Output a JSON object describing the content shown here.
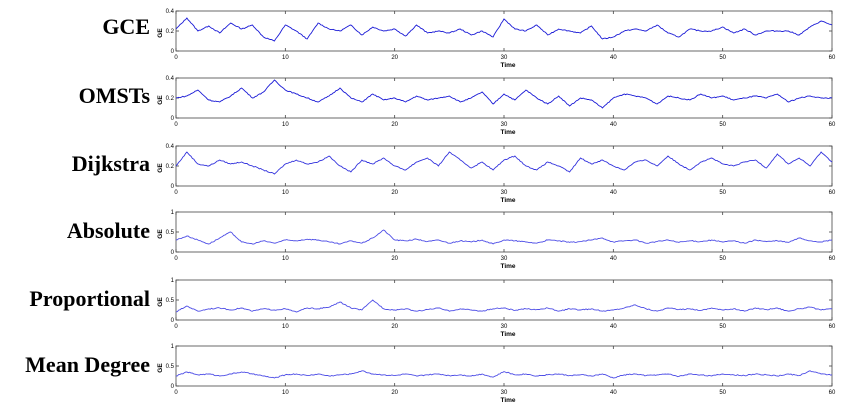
{
  "chart_data": [
    {
      "type": "line",
      "title": "GCE",
      "ylabel": "GE",
      "xlabel": "Time",
      "xlim": [
        0,
        60
      ],
      "ylim": [
        0,
        0.4
      ],
      "xticks": [
        "0",
        "10",
        "20",
        "30",
        "40",
        "50",
        "60"
      ],
      "yticks": [
        "0",
        "0.2",
        "0.4"
      ],
      "series_color": "#1a1ad6",
      "x": [
        0,
        1,
        2,
        3,
        4,
        5,
        6,
        7,
        8,
        9,
        10,
        11,
        12,
        13,
        14,
        15,
        16,
        17,
        18,
        19,
        20,
        21,
        22,
        23,
        24,
        25,
        26,
        27,
        28,
        29,
        30,
        31,
        32,
        33,
        34,
        35,
        36,
        37,
        38,
        39,
        40,
        41,
        42,
        43,
        44,
        45,
        46,
        47,
        48,
        49,
        50,
        51,
        52,
        53,
        54,
        55,
        56,
        57,
        58,
        59,
        60
      ],
      "values": [
        0.22,
        0.33,
        0.2,
        0.25,
        0.18,
        0.28,
        0.22,
        0.26,
        0.14,
        0.1,
        0.26,
        0.2,
        0.12,
        0.28,
        0.22,
        0.2,
        0.26,
        0.16,
        0.24,
        0.2,
        0.22,
        0.15,
        0.26,
        0.18,
        0.2,
        0.18,
        0.22,
        0.16,
        0.2,
        0.14,
        0.32,
        0.22,
        0.2,
        0.26,
        0.16,
        0.22,
        0.2,
        0.18,
        0.25,
        0.12,
        0.14,
        0.2,
        0.22,
        0.2,
        0.26,
        0.18,
        0.14,
        0.22,
        0.2,
        0.2,
        0.24,
        0.18,
        0.22,
        0.16,
        0.2,
        0.2,
        0.2,
        0.16,
        0.24,
        0.3,
        0.26
      ]
    },
    {
      "type": "line",
      "title": "OMSTs",
      "ylabel": "GE",
      "xlabel": "Time",
      "xlim": [
        0,
        60
      ],
      "ylim": [
        0,
        0.4
      ],
      "xticks": [
        "0",
        "10",
        "20",
        "30",
        "40",
        "50",
        "60"
      ],
      "yticks": [
        "0",
        "0.2",
        "0.4"
      ],
      "series_color": "#1a1ad6",
      "x": [
        0,
        1,
        2,
        3,
        4,
        5,
        6,
        7,
        8,
        9,
        10,
        11,
        12,
        13,
        14,
        15,
        16,
        17,
        18,
        19,
        20,
        21,
        22,
        23,
        24,
        25,
        26,
        27,
        28,
        29,
        30,
        31,
        32,
        33,
        34,
        35,
        36,
        37,
        38,
        39,
        40,
        41,
        42,
        43,
        44,
        45,
        46,
        47,
        48,
        49,
        50,
        51,
        52,
        53,
        54,
        55,
        56,
        57,
        58,
        59,
        60
      ],
      "values": [
        0.2,
        0.22,
        0.28,
        0.18,
        0.16,
        0.22,
        0.3,
        0.2,
        0.26,
        0.38,
        0.28,
        0.24,
        0.2,
        0.16,
        0.22,
        0.3,
        0.2,
        0.16,
        0.24,
        0.18,
        0.2,
        0.16,
        0.22,
        0.18,
        0.2,
        0.22,
        0.16,
        0.2,
        0.26,
        0.14,
        0.24,
        0.18,
        0.28,
        0.2,
        0.14,
        0.22,
        0.12,
        0.2,
        0.18,
        0.1,
        0.2,
        0.24,
        0.22,
        0.2,
        0.14,
        0.22,
        0.2,
        0.18,
        0.24,
        0.2,
        0.22,
        0.18,
        0.2,
        0.22,
        0.2,
        0.24,
        0.16,
        0.2,
        0.22,
        0.2,
        0.2
      ]
    },
    {
      "type": "line",
      "title": "Dijkstra",
      "ylabel": "GE",
      "xlabel": "Time",
      "xlim": [
        0,
        60
      ],
      "ylim": [
        0,
        0.4
      ],
      "xticks": [
        "0",
        "10",
        "20",
        "30",
        "40",
        "50",
        "60"
      ],
      "yticks": [
        "0",
        "0.2",
        "0.4"
      ],
      "series_color": "#3333dd",
      "x": [
        0,
        1,
        2,
        3,
        4,
        5,
        6,
        7,
        8,
        9,
        10,
        11,
        12,
        13,
        14,
        15,
        16,
        17,
        18,
        19,
        20,
        21,
        22,
        23,
        24,
        25,
        26,
        27,
        28,
        29,
        30,
        31,
        32,
        33,
        34,
        35,
        36,
        37,
        38,
        39,
        40,
        41,
        42,
        43,
        44,
        45,
        46,
        47,
        48,
        49,
        50,
        51,
        52,
        53,
        54,
        55,
        56,
        57,
        58,
        59,
        60
      ],
      "values": [
        0.2,
        0.34,
        0.22,
        0.2,
        0.26,
        0.22,
        0.24,
        0.2,
        0.16,
        0.12,
        0.22,
        0.26,
        0.22,
        0.24,
        0.3,
        0.2,
        0.14,
        0.26,
        0.22,
        0.28,
        0.2,
        0.16,
        0.24,
        0.28,
        0.2,
        0.34,
        0.26,
        0.18,
        0.24,
        0.16,
        0.26,
        0.3,
        0.2,
        0.16,
        0.24,
        0.2,
        0.14,
        0.28,
        0.22,
        0.26,
        0.2,
        0.16,
        0.24,
        0.26,
        0.2,
        0.3,
        0.22,
        0.16,
        0.24,
        0.28,
        0.22,
        0.2,
        0.24,
        0.26,
        0.18,
        0.32,
        0.22,
        0.28,
        0.2,
        0.34,
        0.24
      ]
    },
    {
      "type": "line",
      "title": "Absolute",
      "ylabel": "GE",
      "xlabel": "Time",
      "xlim": [
        0,
        60
      ],
      "ylim": [
        0,
        1
      ],
      "xticks": [
        "0",
        "10",
        "20",
        "30",
        "40",
        "50",
        "60"
      ],
      "yticks": [
        "0",
        "0.5",
        "1"
      ],
      "series_color": "#4d4de6",
      "x": [
        0,
        1,
        2,
        3,
        4,
        5,
        6,
        7,
        8,
        9,
        10,
        11,
        12,
        13,
        14,
        15,
        16,
        17,
        18,
        19,
        20,
        21,
        22,
        23,
        24,
        25,
        26,
        27,
        28,
        29,
        30,
        31,
        32,
        33,
        34,
        35,
        36,
        37,
        38,
        39,
        40,
        41,
        42,
        43,
        44,
        45,
        46,
        47,
        48,
        49,
        50,
        51,
        52,
        53,
        54,
        55,
        56,
        57,
        58,
        59,
        60
      ],
      "values": [
        0.3,
        0.4,
        0.3,
        0.2,
        0.35,
        0.5,
        0.25,
        0.2,
        0.28,
        0.22,
        0.3,
        0.28,
        0.32,
        0.3,
        0.25,
        0.2,
        0.28,
        0.22,
        0.35,
        0.55,
        0.3,
        0.28,
        0.32,
        0.26,
        0.3,
        0.22,
        0.28,
        0.25,
        0.3,
        0.2,
        0.3,
        0.28,
        0.25,
        0.22,
        0.3,
        0.28,
        0.24,
        0.26,
        0.3,
        0.35,
        0.25,
        0.28,
        0.3,
        0.22,
        0.26,
        0.3,
        0.24,
        0.28,
        0.26,
        0.3,
        0.25,
        0.28,
        0.22,
        0.3,
        0.26,
        0.28,
        0.24,
        0.35,
        0.28,
        0.25,
        0.3
      ]
    },
    {
      "type": "line",
      "title": "Proportional",
      "ylabel": "GE",
      "xlabel": "Time",
      "xlim": [
        0,
        60
      ],
      "ylim": [
        0,
        1
      ],
      "xticks": [
        "0",
        "10",
        "20",
        "30",
        "40",
        "50",
        "60"
      ],
      "yticks": [
        "0",
        "0.5",
        "1"
      ],
      "series_color": "#4d4de6",
      "x": [
        0,
        1,
        2,
        3,
        4,
        5,
        6,
        7,
        8,
        9,
        10,
        11,
        12,
        13,
        14,
        15,
        16,
        17,
        18,
        19,
        20,
        21,
        22,
        23,
        24,
        25,
        26,
        27,
        28,
        29,
        30,
        31,
        32,
        33,
        34,
        35,
        36,
        37,
        38,
        39,
        40,
        41,
        42,
        43,
        44,
        45,
        46,
        47,
        48,
        49,
        50,
        51,
        52,
        53,
        54,
        55,
        56,
        57,
        58,
        59,
        60
      ],
      "values": [
        0.2,
        0.35,
        0.22,
        0.28,
        0.3,
        0.25,
        0.3,
        0.22,
        0.28,
        0.25,
        0.28,
        0.2,
        0.3,
        0.28,
        0.32,
        0.45,
        0.3,
        0.25,
        0.5,
        0.28,
        0.25,
        0.28,
        0.22,
        0.26,
        0.3,
        0.22,
        0.28,
        0.25,
        0.22,
        0.28,
        0.3,
        0.24,
        0.28,
        0.26,
        0.3,
        0.22,
        0.28,
        0.25,
        0.28,
        0.22,
        0.25,
        0.3,
        0.38,
        0.28,
        0.22,
        0.3,
        0.26,
        0.28,
        0.24,
        0.3,
        0.25,
        0.28,
        0.22,
        0.3,
        0.26,
        0.3,
        0.22,
        0.28,
        0.32,
        0.25,
        0.28
      ]
    },
    {
      "type": "line",
      "title": "Mean Degree",
      "ylabel": "GE",
      "xlabel": "Time",
      "xlim": [
        0,
        60
      ],
      "ylim": [
        0,
        1
      ],
      "xticks": [
        "0",
        "10",
        "20",
        "30",
        "40",
        "50",
        "60"
      ],
      "yticks": [
        "0",
        "0.5",
        "1"
      ],
      "series_color": "#4d4de6",
      "x": [
        0,
        1,
        2,
        3,
        4,
        5,
        6,
        7,
        8,
        9,
        10,
        11,
        12,
        13,
        14,
        15,
        16,
        17,
        18,
        19,
        20,
        21,
        22,
        23,
        24,
        25,
        26,
        27,
        28,
        29,
        30,
        31,
        32,
        33,
        34,
        35,
        36,
        37,
        38,
        39,
        40,
        41,
        42,
        43,
        44,
        45,
        46,
        47,
        48,
        49,
        50,
        51,
        52,
        53,
        54,
        55,
        56,
        57,
        58,
        59,
        60
      ],
      "values": [
        0.25,
        0.35,
        0.28,
        0.3,
        0.25,
        0.3,
        0.35,
        0.3,
        0.25,
        0.2,
        0.28,
        0.3,
        0.26,
        0.3,
        0.25,
        0.28,
        0.3,
        0.38,
        0.3,
        0.28,
        0.26,
        0.3,
        0.25,
        0.28,
        0.3,
        0.26,
        0.28,
        0.25,
        0.3,
        0.22,
        0.36,
        0.28,
        0.3,
        0.25,
        0.28,
        0.3,
        0.26,
        0.28,
        0.25,
        0.3,
        0.2,
        0.28,
        0.3,
        0.26,
        0.28,
        0.3,
        0.24,
        0.3,
        0.28,
        0.25,
        0.3,
        0.28,
        0.26,
        0.3,
        0.28,
        0.25,
        0.3,
        0.26,
        0.38,
        0.3,
        0.28
      ]
    }
  ]
}
